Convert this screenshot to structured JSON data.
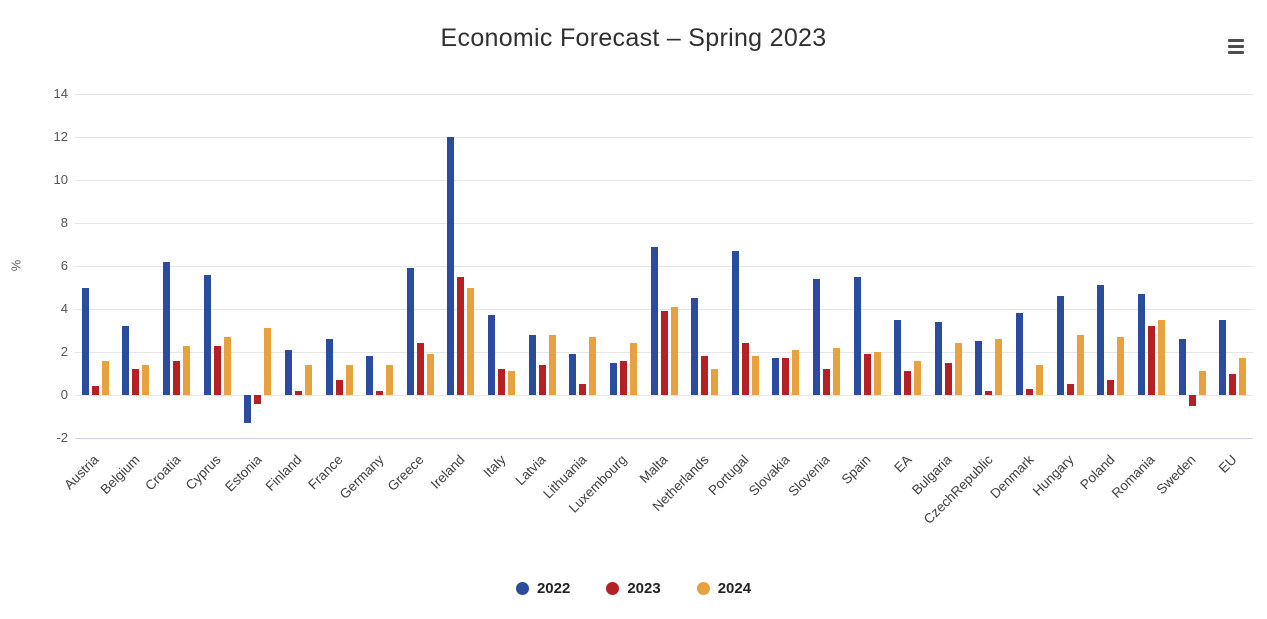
{
  "chart_data": {
    "type": "bar",
    "title": "Economic Forecast – Spring 2023",
    "xlabel": "",
    "ylabel": "%",
    "ylim": [
      -2,
      14
    ],
    "yticks": [
      -2,
      0,
      2,
      4,
      6,
      8,
      10,
      12,
      14
    ],
    "grid": true,
    "legend_position": "bottom",
    "categories": [
      "Austria",
      "Belgium",
      "Croatia",
      "Cyprus",
      "Estonia",
      "Finland",
      "France",
      "Germany",
      "Greece",
      "Ireland",
      "Italy",
      "Latvia",
      "Lithuania",
      "Luxembourg",
      "Malta",
      "Netherlands",
      "Portugal",
      "Slovakia",
      "Slovenia",
      "Spain",
      "EA",
      "Bulgaria",
      "CzechRepublic",
      "Denmark",
      "Hungary",
      "Poland",
      "Romania",
      "Sweden",
      "EU"
    ],
    "series": [
      {
        "name": "2022",
        "color": "#2b4c9d",
        "values": [
          5.0,
          3.2,
          6.2,
          5.6,
          -1.3,
          2.1,
          2.6,
          1.8,
          5.9,
          12.0,
          3.7,
          2.8,
          1.9,
          1.5,
          6.9,
          4.5,
          6.7,
          1.7,
          5.4,
          5.5,
          3.5,
          3.4,
          2.5,
          3.8,
          4.6,
          5.1,
          4.7,
          2.6,
          3.5
        ]
      },
      {
        "name": "2023",
        "color": "#b52025",
        "values": [
          0.4,
          1.2,
          1.6,
          2.3,
          -0.4,
          0.2,
          0.7,
          0.2,
          2.4,
          5.5,
          1.2,
          1.4,
          0.5,
          1.6,
          3.9,
          1.8,
          2.4,
          1.7,
          1.2,
          1.9,
          1.1,
          1.5,
          0.2,
          0.3,
          0.5,
          0.7,
          3.2,
          -0.5,
          1.0
        ]
      },
      {
        "name": "2024",
        "color": "#e7a13e",
        "values": [
          1.6,
          1.4,
          2.3,
          2.7,
          3.1,
          1.4,
          1.4,
          1.4,
          1.9,
          5.0,
          1.1,
          2.8,
          2.7,
          2.4,
          4.1,
          1.2,
          1.8,
          2.1,
          2.2,
          2.0,
          1.6,
          2.4,
          2.6,
          1.4,
          2.8,
          2.7,
          3.5,
          1.1,
          1.7
        ]
      }
    ]
  },
  "export_menu": {
    "icon": "hamburger-menu-icon"
  }
}
